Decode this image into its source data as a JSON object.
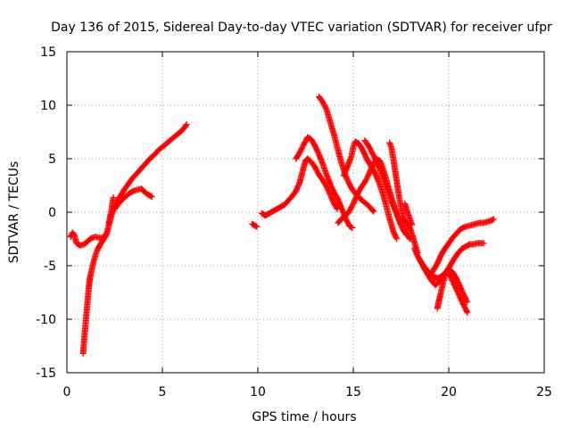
{
  "chart_data": {
    "type": "scatter",
    "title": "Day 136 of 2015, Sidereal Day-to-day VTEC variation (SDTVAR) for receiver ufpr",
    "xlabel": "GPS time / hours",
    "ylabel": "SDTVAR / TECUs",
    "xlim": [
      0,
      25
    ],
    "ylim": [
      -15,
      15
    ],
    "xticks": [
      0,
      5,
      10,
      15,
      20,
      25
    ],
    "yticks": [
      -15,
      -10,
      -5,
      0,
      5,
      10,
      15
    ],
    "grid": true,
    "marker": "+",
    "color": "#ff0000",
    "series": [
      {
        "segments": [
          [
            [
              0.2,
              -2.3
            ],
            [
              0.3,
              -1.9
            ],
            [
              0.4,
              -2.2
            ],
            [
              0.5,
              -2.9
            ],
            [
              0.7,
              -3.1
            ],
            [
              0.9,
              -3.0
            ],
            [
              1.1,
              -2.7
            ],
            [
              1.3,
              -2.4
            ],
            [
              1.5,
              -2.3
            ],
            [
              1.7,
              -2.4
            ],
            [
              1.9,
              -2.4
            ],
            [
              2.0,
              -2.2
            ],
            [
              2.1,
              -1.9
            ]
          ],
          [
            [
              0.85,
              -13.2
            ],
            [
              0.9,
              -12.0
            ],
            [
              0.95,
              -11.0
            ],
            [
              1.0,
              -10.0
            ],
            [
              1.05,
              -9.0
            ],
            [
              1.1,
              -8.0
            ],
            [
              1.15,
              -7.0
            ],
            [
              1.2,
              -6.2
            ],
            [
              1.3,
              -5.4
            ],
            [
              1.4,
              -4.6
            ],
            [
              1.5,
              -4.0
            ],
            [
              1.6,
              -3.5
            ],
            [
              1.75,
              -3.0
            ],
            [
              1.9,
              -2.6
            ],
            [
              2.0,
              -2.3
            ],
            [
              2.1,
              -1.9
            ],
            [
              2.2,
              -1.2
            ],
            [
              2.3,
              -0.5
            ],
            [
              2.4,
              0.0
            ],
            [
              2.5,
              0.5
            ],
            [
              2.6,
              1.0
            ]
          ],
          [
            [
              2.2,
              -1.0
            ],
            [
              2.3,
              -0.1
            ],
            [
              2.35,
              0.4
            ],
            [
              2.4,
              1.0
            ],
            [
              2.45,
              1.5
            ]
          ],
          [
            [
              2.5,
              0.3
            ],
            [
              2.7,
              0.8
            ],
            [
              2.9,
              1.2
            ],
            [
              3.1,
              1.5
            ],
            [
              3.3,
              1.8
            ],
            [
              3.5,
              2.0
            ],
            [
              3.7,
              2.1
            ],
            [
              3.9,
              2.2
            ],
            [
              4.0,
              2.0
            ],
            [
              4.2,
              1.7
            ],
            [
              4.4,
              1.5
            ],
            [
              4.5,
              1.4
            ]
          ],
          [
            [
              2.6,
              0.9
            ],
            [
              2.8,
              1.5
            ],
            [
              3.0,
              2.1
            ],
            [
              3.2,
              2.6
            ],
            [
              3.4,
              3.1
            ],
            [
              3.6,
              3.5
            ],
            [
              3.8,
              3.9
            ],
            [
              4.0,
              4.3
            ],
            [
              4.2,
              4.7
            ],
            [
              4.4,
              5.1
            ],
            [
              4.6,
              5.4
            ],
            [
              4.8,
              5.8
            ],
            [
              5.0,
              6.1
            ],
            [
              5.2,
              6.4
            ],
            [
              5.4,
              6.7
            ],
            [
              5.6,
              7.0
            ],
            [
              5.8,
              7.3
            ],
            [
              6.0,
              7.6
            ],
            [
              6.2,
              8.0
            ],
            [
              6.3,
              8.3
            ]
          ],
          [
            [
              9.7,
              -1.1
            ],
            [
              9.8,
              -1.2
            ],
            [
              9.9,
              -1.3
            ],
            [
              10.0,
              -1.4
            ]
          ],
          [
            [
              10.2,
              -0.1
            ],
            [
              10.4,
              -0.3
            ],
            [
              10.6,
              -0.1
            ],
            [
              10.8,
              0.1
            ],
            [
              11.0,
              0.3
            ],
            [
              11.2,
              0.5
            ],
            [
              11.4,
              0.7
            ],
            [
              11.6,
              1.1
            ],
            [
              11.8,
              1.5
            ],
            [
              12.0,
              2.0
            ],
            [
              12.2,
              2.8
            ],
            [
              12.3,
              3.5
            ],
            [
              12.4,
              4.2
            ],
            [
              12.5,
              4.8
            ],
            [
              12.6,
              5.0
            ],
            [
              12.8,
              4.7
            ],
            [
              13.0,
              4.2
            ],
            [
              13.2,
              3.5
            ],
            [
              13.4,
              3.0
            ],
            [
              13.6,
              2.4
            ],
            [
              13.8,
              1.6
            ],
            [
              14.0,
              0.8
            ],
            [
              14.2,
              0.2
            ]
          ],
          [
            [
              12.0,
              5.0
            ],
            [
              12.2,
              5.6
            ],
            [
              12.4,
              6.3
            ],
            [
              12.6,
              7.0
            ],
            [
              12.8,
              6.8
            ],
            [
              13.0,
              6.2
            ],
            [
              13.2,
              5.4
            ],
            [
              13.4,
              4.5
            ],
            [
              13.6,
              3.5
            ],
            [
              13.8,
              2.6
            ],
            [
              14.0,
              1.8
            ],
            [
              14.2,
              1.2
            ],
            [
              14.4,
              0.3
            ],
            [
              14.6,
              -0.6
            ],
            [
              14.8,
              -1.3
            ],
            [
              15.0,
              -1.5
            ]
          ],
          [
            [
              13.2,
              10.8
            ],
            [
              13.4,
              10.3
            ],
            [
              13.6,
              9.6
            ],
            [
              13.8,
              8.4
            ],
            [
              14.0,
              7.2
            ],
            [
              14.2,
              5.8
            ],
            [
              14.4,
              4.5
            ],
            [
              14.6,
              3.4
            ],
            [
              14.8,
              2.6
            ],
            [
              15.0,
              2.0
            ],
            [
              15.2,
              1.6
            ],
            [
              15.4,
              1.2
            ],
            [
              15.6,
              0.9
            ],
            [
              15.8,
              0.6
            ],
            [
              16.0,
              0.2
            ],
            [
              16.1,
              0.0
            ]
          ],
          [
            [
              14.5,
              3.4
            ],
            [
              14.7,
              4.3
            ],
            [
              14.9,
              5.2
            ],
            [
              15.0,
              6.1
            ],
            [
              15.1,
              6.6
            ],
            [
              15.3,
              6.4
            ],
            [
              15.5,
              5.8
            ],
            [
              15.7,
              5.0
            ],
            [
              15.9,
              4.4
            ],
            [
              16.1,
              3.8
            ],
            [
              16.3,
              3.0
            ],
            [
              16.5,
              2.0
            ],
            [
              16.7,
              0.8
            ],
            [
              16.9,
              -0.6
            ],
            [
              17.1,
              -1.8
            ],
            [
              17.3,
              -2.6
            ]
          ],
          [
            [
              14.2,
              -1.0
            ],
            [
              14.4,
              -0.6
            ],
            [
              14.6,
              -0.3
            ],
            [
              14.8,
              0.1
            ],
            [
              15.0,
              0.8
            ],
            [
              15.2,
              1.6
            ],
            [
              15.4,
              2.3
            ],
            [
              15.6,
              2.8
            ],
            [
              15.8,
              3.5
            ],
            [
              16.0,
              4.3
            ],
            [
              16.2,
              5.0
            ],
            [
              16.4,
              4.8
            ],
            [
              16.6,
              3.8
            ],
            [
              16.8,
              2.6
            ],
            [
              17.0,
              1.4
            ],
            [
              17.2,
              0.2
            ],
            [
              17.4,
              -0.8
            ],
            [
              17.6,
              -1.6
            ],
            [
              17.8,
              -2.2
            ]
          ],
          [
            [
              15.6,
              6.7
            ],
            [
              15.8,
              6.2
            ],
            [
              16.0,
              5.5
            ],
            [
              16.2,
              4.8
            ],
            [
              16.4,
              4.0
            ],
            [
              16.6,
              3.0
            ],
            [
              16.8,
              2.0
            ],
            [
              17.0,
              1.0
            ],
            [
              17.2,
              0.2
            ],
            [
              17.4,
              -0.6
            ],
            [
              17.6,
              -1.3
            ],
            [
              17.8,
              -2.0
            ],
            [
              18.0,
              -2.6
            ]
          ],
          [
            [
              16.9,
              6.5
            ],
            [
              17.0,
              6.0
            ],
            [
              17.1,
              5.0
            ],
            [
              17.2,
              3.8
            ],
            [
              17.3,
              2.6
            ],
            [
              17.4,
              1.4
            ],
            [
              17.5,
              0.4
            ],
            [
              17.6,
              -0.5
            ],
            [
              17.8,
              -1.0
            ],
            [
              18.0,
              -1.6
            ],
            [
              18.1,
              -2.2
            ],
            [
              18.2,
              -2.8
            ],
            [
              18.3,
              -3.4
            ],
            [
              18.4,
              -3.9
            ]
          ],
          [
            [
              17.7,
              0.8
            ],
            [
              17.8,
              0.2
            ],
            [
              17.9,
              -0.3
            ],
            [
              18.0,
              -0.8
            ],
            [
              18.1,
              -1.3
            ]
          ],
          [
            [
              18.2,
              -3.4
            ],
            [
              18.4,
              -4.2
            ],
            [
              18.6,
              -4.8
            ],
            [
              18.8,
              -5.3
            ],
            [
              19.0,
              -5.7
            ],
            [
              19.2,
              -6.0
            ],
            [
              19.4,
              -6.2
            ],
            [
              19.6,
              -6.0
            ],
            [
              19.8,
              -5.7
            ],
            [
              20.0,
              -5.3
            ],
            [
              20.2,
              -5.6
            ],
            [
              20.4,
              -6.2
            ],
            [
              20.6,
              -7.0
            ],
            [
              20.8,
              -7.8
            ],
            [
              21.0,
              -8.5
            ]
          ],
          [
            [
              18.5,
              -4.5
            ],
            [
              18.7,
              -5.2
            ],
            [
              18.9,
              -5.8
            ],
            [
              19.1,
              -6.4
            ],
            [
              19.3,
              -6.8
            ],
            [
              19.5,
              -6.5
            ],
            [
              19.7,
              -6.0
            ],
            [
              19.9,
              -5.5
            ],
            [
              20.1,
              -6.0
            ],
            [
              20.3,
              -6.8
            ],
            [
              20.5,
              -7.6
            ],
            [
              20.7,
              -8.4
            ],
            [
              20.9,
              -9.1
            ],
            [
              21.0,
              -9.5
            ]
          ],
          [
            [
              19.4,
              -9.0
            ],
            [
              19.5,
              -8.2
            ],
            [
              19.6,
              -7.4
            ],
            [
              19.7,
              -6.6
            ],
            [
              19.8,
              -5.9
            ],
            [
              19.9,
              -5.5
            ],
            [
              20.1,
              -4.9
            ],
            [
              20.3,
              -4.3
            ],
            [
              20.5,
              -3.8
            ],
            [
              20.7,
              -3.4
            ],
            [
              20.9,
              -3.2
            ],
            [
              21.1,
              -3.0
            ],
            [
              21.3,
              -3.0
            ],
            [
              21.5,
              -2.9
            ],
            [
              21.7,
              -2.9
            ],
            [
              21.9,
              -2.9
            ]
          ],
          [
            [
              19.0,
              -6.0
            ],
            [
              19.2,
              -5.4
            ],
            [
              19.4,
              -4.8
            ],
            [
              19.6,
              -4.0
            ],
            [
              19.8,
              -3.4
            ],
            [
              20.0,
              -2.9
            ],
            [
              20.2,
              -2.4
            ],
            [
              20.4,
              -2.0
            ],
            [
              20.6,
              -1.6
            ],
            [
              20.8,
              -1.4
            ],
            [
              21.0,
              -1.3
            ],
            [
              21.2,
              -1.2
            ],
            [
              21.4,
              -1.1
            ],
            [
              21.6,
              -1.0
            ],
            [
              21.8,
              -1.0
            ],
            [
              22.0,
              -0.9
            ],
            [
              22.2,
              -0.8
            ],
            [
              22.4,
              -0.6
            ]
          ]
        ]
      }
    ]
  }
}
